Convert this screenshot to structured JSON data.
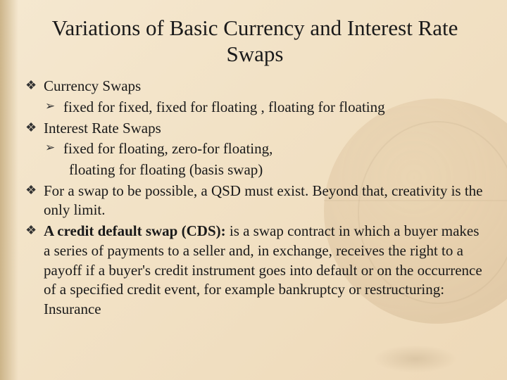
{
  "colors": {
    "bg_top": "#f5e8d0",
    "bg_mid": "#f2e2c6",
    "bg_bottom": "#eed9b8",
    "text": "#1a1a1a",
    "bullet": "#333333"
  },
  "typography": {
    "title_fontsize_pt": 23,
    "body_fontsize_pt": 16,
    "font_family": "Georgia / Times-like serif"
  },
  "title": "Variations of Basic Currency and Interest Rate Swaps",
  "bullets": [
    {
      "level": 1,
      "text": "Currency Swaps"
    },
    {
      "level": 2,
      "text": "fixed for fixed,  fixed for floating , floating for floating"
    },
    {
      "level": 1,
      "text": "Interest Rate Swaps"
    },
    {
      "level": 2,
      "text": "fixed for floating,  zero-for floating,"
    },
    {
      "level": "2b",
      "text": "floating for floating (basis swap)"
    },
    {
      "level": 1,
      "text": "For a swap to be possible, a QSD must exist. Beyond that, creativity is the only limit."
    },
    {
      "level": 1,
      "bold_prefix": "A credit default swap (CDS):",
      "text": " is a  swap contract in which a buyer makes a series of payments to a seller and, in exchange, receives the right to a payoff if a buyer's credit instrument goes into default or on the occurrence of a specified credit event, for example bankruptcy or restructuring: Insurance"
    }
  ]
}
